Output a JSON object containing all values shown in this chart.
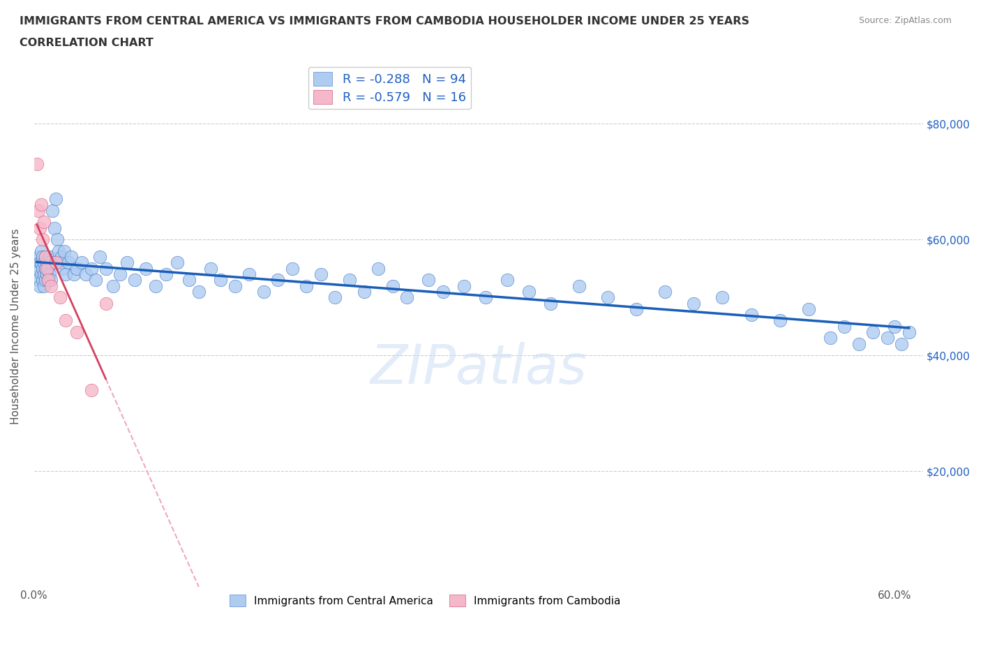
{
  "title_line1": "IMMIGRANTS FROM CENTRAL AMERICA VS IMMIGRANTS FROM CAMBODIA HOUSEHOLDER INCOME UNDER 25 YEARS",
  "title_line2": "CORRELATION CHART",
  "source_text": "Source: ZipAtlas.com",
  "ylabel": "Householder Income Under 25 years",
  "xlim": [
    0.0,
    0.62
  ],
  "ylim": [
    0,
    90000
  ],
  "yticks": [
    0,
    20000,
    40000,
    60000,
    80000
  ],
  "ytick_labels": [
    "",
    "$20,000",
    "$40,000",
    "$60,000",
    "$80,000"
  ],
  "xtick_positions": [
    0.0,
    0.1,
    0.2,
    0.3,
    0.4,
    0.5,
    0.6
  ],
  "xtick_labels": [
    "0.0%",
    "",
    "",
    "",
    "",
    "",
    "60.0%"
  ],
  "r_central_america": -0.288,
  "n_central_america": 94,
  "r_cambodia": -0.579,
  "n_cambodia": 16,
  "color_central_america": "#aecbf0",
  "color_cambodia": "#f5b8cb",
  "trendline_color_central": "#1a5eb8",
  "trendline_color_cambodia_solid": "#d44060",
  "trendline_color_cambodia_dash": "#f0a8c0",
  "watermark": "ZIPatlas",
  "legend_label_ca": "Immigrants from Central America",
  "legend_label_camb": "Immigrants from Cambodia",
  "ca_x": [
    0.002,
    0.003,
    0.003,
    0.004,
    0.004,
    0.005,
    0.005,
    0.005,
    0.006,
    0.006,
    0.006,
    0.007,
    0.007,
    0.007,
    0.008,
    0.008,
    0.008,
    0.009,
    0.009,
    0.01,
    0.01,
    0.011,
    0.011,
    0.012,
    0.012,
    0.013,
    0.014,
    0.015,
    0.016,
    0.017,
    0.018,
    0.019,
    0.02,
    0.021,
    0.022,
    0.024,
    0.026,
    0.028,
    0.03,
    0.033,
    0.036,
    0.04,
    0.043,
    0.046,
    0.05,
    0.055,
    0.06,
    0.065,
    0.07,
    0.078,
    0.085,
    0.092,
    0.1,
    0.108,
    0.115,
    0.123,
    0.13,
    0.14,
    0.15,
    0.16,
    0.17,
    0.18,
    0.19,
    0.2,
    0.21,
    0.22,
    0.23,
    0.24,
    0.25,
    0.26,
    0.275,
    0.285,
    0.3,
    0.315,
    0.33,
    0.345,
    0.36,
    0.38,
    0.4,
    0.42,
    0.44,
    0.46,
    0.48,
    0.5,
    0.52,
    0.54,
    0.555,
    0.565,
    0.575,
    0.585,
    0.595,
    0.6,
    0.605,
    0.61
  ],
  "ca_y": [
    55000,
    57000,
    53000,
    56000,
    52000,
    58000,
    54000,
    56000,
    53000,
    55000,
    57000,
    54000,
    56000,
    52000,
    55000,
    53000,
    57000,
    54000,
    56000,
    53000,
    55000,
    54000,
    57000,
    56000,
    53000,
    65000,
    62000,
    67000,
    60000,
    58000,
    56000,
    57000,
    55000,
    58000,
    54000,
    56000,
    57000,
    54000,
    55000,
    56000,
    54000,
    55000,
    53000,
    57000,
    55000,
    52000,
    54000,
    56000,
    53000,
    55000,
    52000,
    54000,
    56000,
    53000,
    51000,
    55000,
    53000,
    52000,
    54000,
    51000,
    53000,
    55000,
    52000,
    54000,
    50000,
    53000,
    51000,
    55000,
    52000,
    50000,
    53000,
    51000,
    52000,
    50000,
    53000,
    51000,
    49000,
    52000,
    50000,
    48000,
    51000,
    49000,
    50000,
    47000,
    46000,
    48000,
    43000,
    45000,
    42000,
    44000,
    43000,
    45000,
    42000,
    44000
  ],
  "camb_x": [
    0.002,
    0.003,
    0.004,
    0.005,
    0.006,
    0.007,
    0.008,
    0.009,
    0.01,
    0.012,
    0.015,
    0.018,
    0.022,
    0.03,
    0.04,
    0.05
  ],
  "camb_y": [
    73000,
    65000,
    62000,
    66000,
    60000,
    63000,
    57000,
    55000,
    53000,
    52000,
    56000,
    50000,
    46000,
    44000,
    34000,
    49000
  ]
}
